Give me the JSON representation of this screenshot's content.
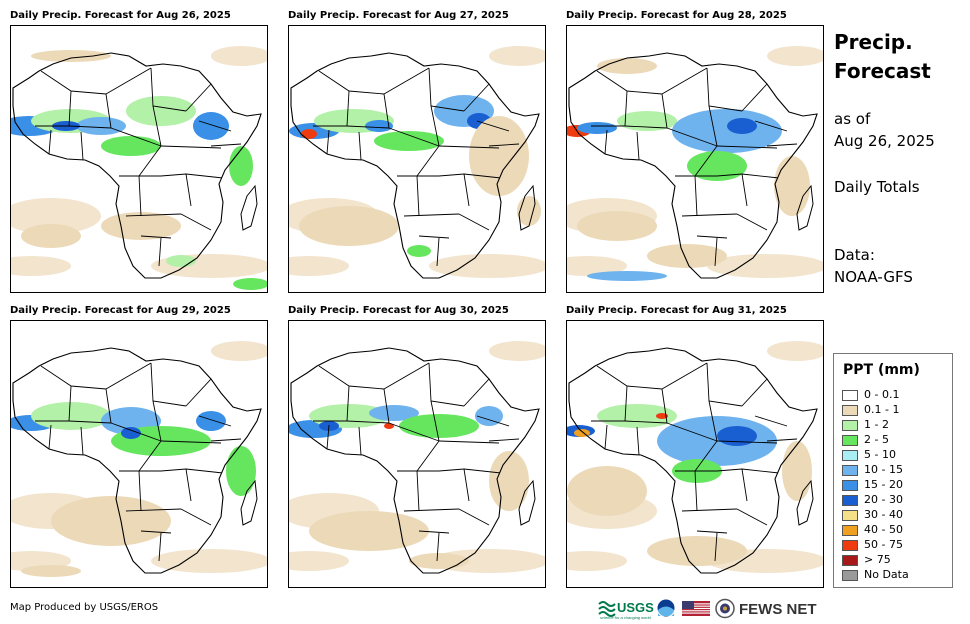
{
  "panels": [
    {
      "title": "Daily Precip. Forecast for Aug 26, 2025"
    },
    {
      "title": "Daily Precip. Forecast for Aug 27, 2025"
    },
    {
      "title": "Daily Precip. Forecast for Aug 28, 2025"
    },
    {
      "title": "Daily Precip. Forecast for Aug 29, 2025"
    },
    {
      "title": "Daily Precip. Forecast for Aug 30, 2025"
    },
    {
      "title": "Daily Precip. Forecast for Aug 31, 2025"
    }
  ],
  "side": {
    "title_line1": "Precip.",
    "title_line2": "Forecast",
    "asof_line1": "as of",
    "asof_line2": "Aug 26, 2025",
    "totals": "Daily Totals",
    "data_line1": "Data:",
    "data_line2": "NOAA-GFS"
  },
  "legend": {
    "title": "PPT (mm)",
    "items": [
      {
        "label": "0 - 0.1",
        "color": "#ffffff"
      },
      {
        "label": "0.1 - 1",
        "color": "#ecd9b8"
      },
      {
        "label": "1 - 2",
        "color": "#b3f0a8"
      },
      {
        "label": "2 - 5",
        "color": "#66e65f"
      },
      {
        "label": "5 - 10",
        "color": "#a9eef5"
      },
      {
        "label": "10 - 15",
        "color": "#6fb3ee"
      },
      {
        "label": "15 - 20",
        "color": "#3a8fe6"
      },
      {
        "label": "20 - 30",
        "color": "#1a5fd1"
      },
      {
        "label": "30 - 40",
        "color": "#f5e08a"
      },
      {
        "label": "40 - 50",
        "color": "#f0a020"
      },
      {
        "label": "50 - 75",
        "color": "#ee3b10"
      },
      {
        "label": "> 75",
        "color": "#a81818"
      },
      {
        "label": "No Data",
        "color": "#9a9a9a"
      }
    ]
  },
  "footer": {
    "credit": "Map Produced by USGS/EROS",
    "usgs": "USGS",
    "usgs_tagline": "science for a changing world",
    "fews": "FEWS NET"
  }
}
